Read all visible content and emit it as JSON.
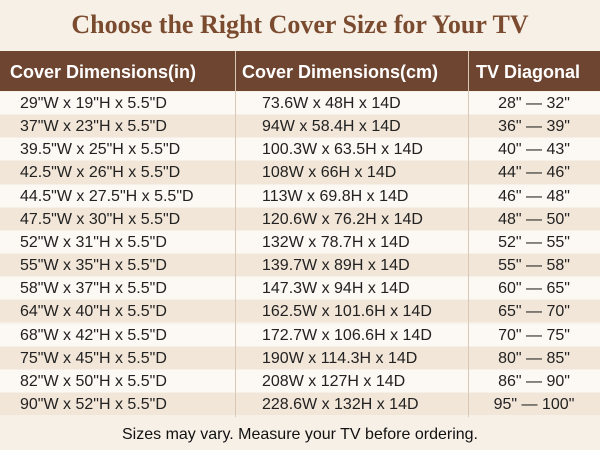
{
  "title": "Choose the Right Cover Size for Your TV",
  "table": {
    "header": [
      "Cover Dimensions(in)",
      "Cover Dimensions(cm)",
      "TV Diagonal"
    ],
    "rows": [
      [
        "29\"W x 19\"H x 5.5\"D",
        "73.6W x 48H x 14D",
        "28\" — 32\""
      ],
      [
        "37\"W x 23\"H x 5.5\"D",
        "94W x 58.4H x 14D",
        "36\" — 39\""
      ],
      [
        "39.5\"W x 25\"H x 5.5\"D",
        "100.3W x 63.5H x 14D",
        "40\" — 43\""
      ],
      [
        "42.5\"W x 26\"H x 5.5\"D",
        "108W x 66H x 14D",
        "44\" — 46\""
      ],
      [
        "44.5\"W x 27.5\"H x 5.5\"D",
        "113W x 69.8H x 14D",
        "46\" — 48\""
      ],
      [
        "47.5\"W x 30\"H x 5.5\"D",
        "120.6W x 76.2H x 14D",
        "48\" — 50\""
      ],
      [
        "52\"W x 31\"H x 5.5\"D",
        "132W x 78.7H x 14D",
        "52\" — 55\""
      ],
      [
        "55\"W x 35\"H x 5.5\"D",
        "139.7W x 89H x 14D",
        "55\" — 58\""
      ],
      [
        "58\"W x 37\"H x 5.5\"D",
        "147.3W x 94H x 14D",
        "60\" — 65\""
      ],
      [
        "64\"W x 40\"H x 5.5\"D",
        "162.5W x 101.6H x 14D",
        "65\" — 70\""
      ],
      [
        "68\"W x 42\"H x 5.5\"D",
        "172.7W x 106.6H x 14D",
        "70\" — 75\""
      ],
      [
        "75\"W x 45\"H x 5.5\"D",
        "190W x 114.3H x 14D",
        "80\" — 85\""
      ],
      [
        "82\"W x 50\"H x 5.5\"D",
        "208W x 127H x 14D",
        "86\" — 90\""
      ],
      [
        "90\"W x 52\"H x 5.5\"D",
        "228.6W x 132H x 14D",
        "95\" — 100\""
      ]
    ]
  },
  "footer": "Sizes may vary. Measure your TV before ordering."
}
